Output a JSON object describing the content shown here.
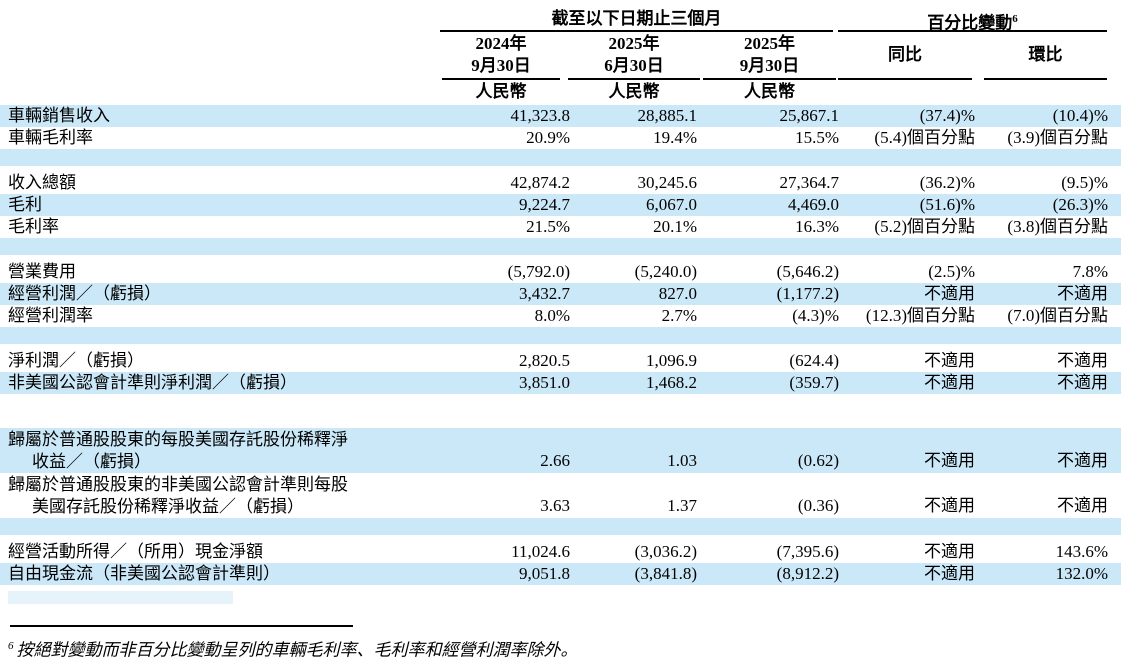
{
  "table": {
    "group_headers": [
      {
        "label": "截至以下日期止三個月",
        "sup": ""
      },
      {
        "label": "百分比變動",
        "sup": "6"
      }
    ],
    "columns": [
      {
        "line1": "2024年",
        "line2": "9月30日",
        "unit": "人民幣"
      },
      {
        "line1": "2025年",
        "line2": "6月30日",
        "unit": "人民幣"
      },
      {
        "line1": "2025年",
        "line2": "9月30日",
        "unit": "人民幣"
      },
      {
        "line1": "同比",
        "line2": "",
        "unit": ""
      },
      {
        "line1": "環比",
        "line2": "",
        "unit": ""
      }
    ],
    "rows": [
      {
        "type": "data",
        "shade": true,
        "label": "車輛銷售收入",
        "values": [
          "41,323.8",
          "28,885.1",
          "25,867.1",
          "(37.4)%",
          "(10.4)%"
        ]
      },
      {
        "type": "data",
        "shade": false,
        "label": "車輛毛利率",
        "values": [
          "20.9%",
          "19.4%",
          "15.5%",
          "(5.4)個百分點",
          "(3.9)個百分點"
        ]
      },
      {
        "type": "empty",
        "shade": true
      },
      {
        "type": "data",
        "shade": false,
        "label": "收入總額",
        "values": [
          "42,874.2",
          "30,245.6",
          "27,364.7",
          "(36.2)%",
          "(9.5)%"
        ]
      },
      {
        "type": "data",
        "shade": true,
        "label": "毛利",
        "values": [
          "9,224.7",
          "6,067.0",
          "4,469.0",
          "(51.6)%",
          "(26.3)%"
        ]
      },
      {
        "type": "data",
        "shade": false,
        "label": "毛利率",
        "values": [
          "21.5%",
          "20.1%",
          "16.3%",
          "(5.2)個百分點",
          "(3.8)個百分點"
        ]
      },
      {
        "type": "empty",
        "shade": true
      },
      {
        "type": "data",
        "shade": false,
        "label": "營業費用",
        "values": [
          "(5,792.0)",
          "(5,240.0)",
          "(5,646.2)",
          "(2.5)%",
          "7.8%"
        ]
      },
      {
        "type": "data",
        "shade": true,
        "label": "經營利潤／（虧損）",
        "values": [
          "3,432.7",
          "827.0",
          "(1,177.2)",
          "不適用",
          "不適用"
        ]
      },
      {
        "type": "data",
        "shade": false,
        "label": "經營利潤率",
        "values": [
          "8.0%",
          "2.7%",
          "(4.3)%",
          "(12.3)個百分點",
          "(7.0)個百分點"
        ]
      },
      {
        "type": "empty",
        "shade": true
      },
      {
        "type": "data",
        "shade": false,
        "label": "淨利潤／（虧損）",
        "values": [
          "2,820.5",
          "1,096.9",
          "(624.4)",
          "不適用",
          "不適用"
        ]
      },
      {
        "type": "data",
        "shade": true,
        "label": "非美國公認會計準則淨利潤／（虧損）",
        "values": [
          "3,851.0",
          "1,468.2",
          "(359.7)",
          "不適用",
          "不適用"
        ]
      },
      {
        "type": "gap",
        "shade": false
      },
      {
        "type": "data2",
        "shade": true,
        "label_lines": [
          "歸屬於普通股股東的每股美國存託股份稀釋淨",
          "收益／（虧損）"
        ],
        "values": [
          "2.66",
          "1.03",
          "(0.62)",
          "不適用",
          "不適用"
        ]
      },
      {
        "type": "data2",
        "shade": false,
        "label_lines": [
          "歸屬於普通股股東的非美國公認會計準則每股",
          "美國存託股份稀釋淨收益／（虧損）"
        ],
        "values": [
          "3.63",
          "1.37",
          "(0.36)",
          "不適用",
          "不適用"
        ]
      },
      {
        "type": "empty",
        "shade": true
      },
      {
        "type": "data",
        "shade": false,
        "label": "經營活動所得／（所用）現金淨額",
        "values": [
          "11,024.6",
          "(3,036.2)",
          "(7,395.6)",
          "不適用",
          "143.6%"
        ]
      },
      {
        "type": "data",
        "shade": true,
        "label": "自由現金流（非美國公認會計準則）",
        "values": [
          "9,051.8",
          "(3,841.8)",
          "(8,912.2)",
          "不適用",
          "132.0%"
        ]
      },
      {
        "type": "bar",
        "shade": true
      }
    ]
  },
  "footnote": {
    "sup": "6",
    "text": "按絕對變動而非百分比變動呈列的車輛毛利率、毛利率和經營利潤率除外。"
  },
  "colors": {
    "stripe_blue": "#cbe8f8",
    "stripe_faint": "#e7f3fb",
    "text": "#000000",
    "rule_line": "#000000"
  }
}
